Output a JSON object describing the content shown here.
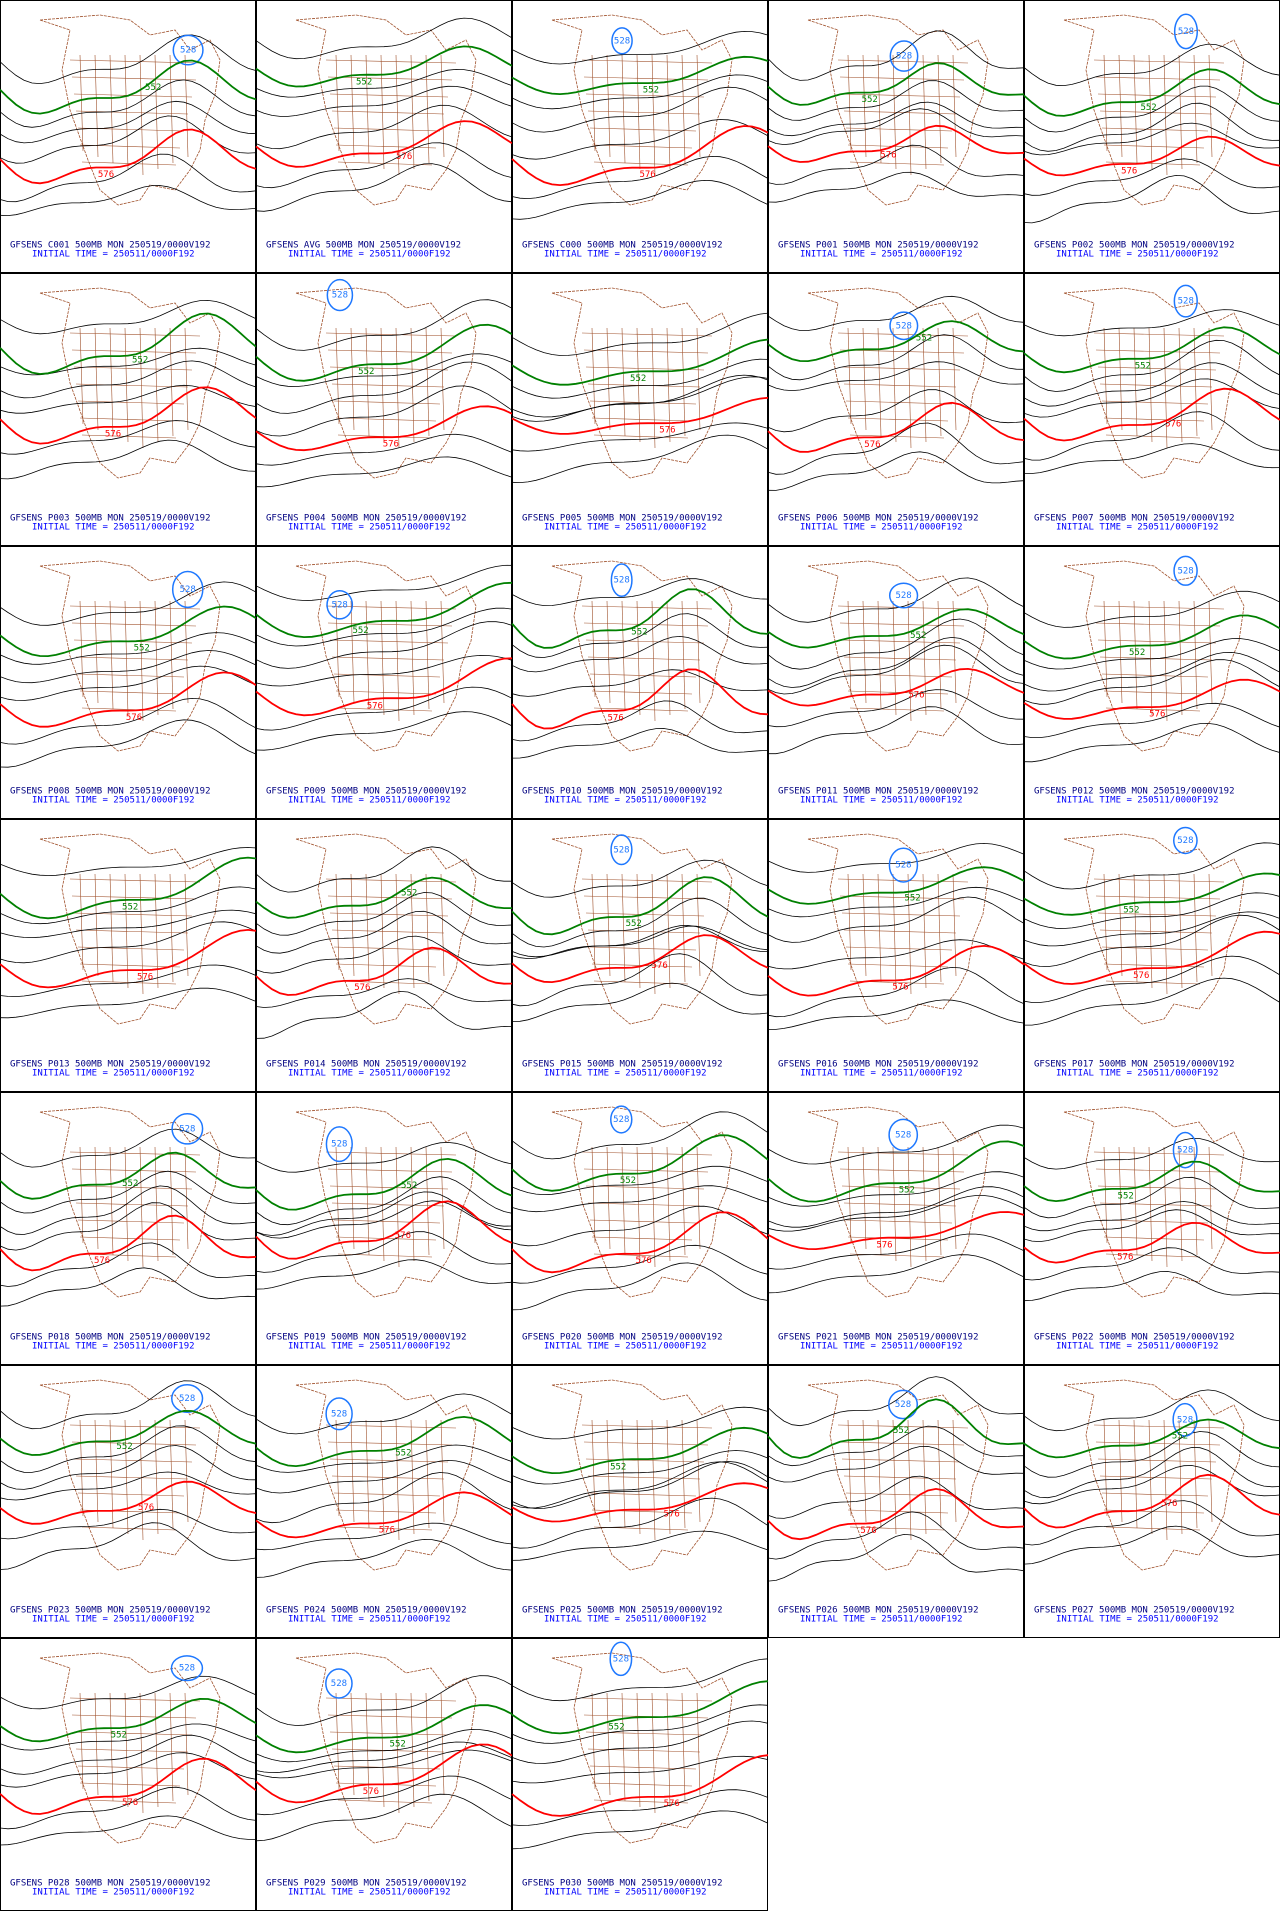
{
  "panels": [
    {
      "title": "GFSENS C001 500MB MON 250519/0000V192",
      "init": "INITIAL TIME = 250511/0000F192",
      "contours": [
        {
          "value": 528,
          "color": "#1e78ff"
        },
        {
          "value": 552,
          "color": "#008000"
        },
        {
          "value": 576,
          "color": "#ff0000"
        }
      ]
    },
    {
      "title": "GFSENS AVG 500MB MON 250519/0000V192",
      "init": "INITIAL TIME = 250511/0000F192",
      "contours": [
        {
          "value": 552,
          "color": "#008000"
        },
        {
          "value": 576,
          "color": "#ff0000"
        }
      ]
    },
    {
      "title": "GFSENS C000 500MB MON 250519/0000V192",
      "init": "INITIAL TIME = 250511/0000F192",
      "contours": [
        {
          "value": 528,
          "color": "#1e78ff"
        },
        {
          "value": 552,
          "color": "#008000"
        },
        {
          "value": 576,
          "color": "#ff0000"
        }
      ]
    },
    {
      "title": "GFSENS P001 500MB MON 250519/0000V192",
      "init": "INITIAL TIME = 250511/0000F192",
      "contours": [
        {
          "value": 528,
          "color": "#1e78ff"
        },
        {
          "value": 552,
          "color": "#008000"
        },
        {
          "value": 576,
          "color": "#ff0000"
        }
      ]
    },
    {
      "title": "GFSENS P002 500MB MON 250519/0000V192",
      "init": "INITIAL TIME = 250511/0000F192",
      "contours": [
        {
          "value": 528,
          "color": "#1e78ff"
        },
        {
          "value": 552,
          "color": "#008000"
        },
        {
          "value": 576,
          "color": "#ff0000"
        }
      ]
    },
    {
      "title": "GFSENS P003 500MB MON 250519/0000V192",
      "init": "INITIAL TIME = 250511/0000F192",
      "contours": [
        {
          "value": 552,
          "color": "#008000"
        },
        {
          "value": 576,
          "color": "#ff0000"
        }
      ]
    },
    {
      "title": "GFSENS P004 500MB MON 250519/0000V192",
      "init": "INITIAL TIME = 250511/0000F192",
      "contours": [
        {
          "value": 528,
          "color": "#1e78ff"
        },
        {
          "value": 552,
          "color": "#008000"
        },
        {
          "value": 576,
          "color": "#ff0000"
        }
      ]
    },
    {
      "title": "GFSENS P005 500MB MON 250519/0000V192",
      "init": "INITIAL TIME = 250511/0000F192",
      "contours": [
        {
          "value": 552,
          "color": "#008000"
        },
        {
          "value": 576,
          "color": "#ff0000"
        }
      ]
    },
    {
      "title": "GFSENS P006 500MB MON 250519/0000V192",
      "init": "INITIAL TIME = 250511/0000F192",
      "contours": [
        {
          "value": 528,
          "color": "#1e78ff"
        },
        {
          "value": 552,
          "color": "#008000"
        },
        {
          "value": 576,
          "color": "#ff0000"
        }
      ]
    },
    {
      "title": "GFSENS P007 500MB MON 250519/0000V192",
      "init": "INITIAL TIME = 250511/0000F192",
      "contours": [
        {
          "value": 528,
          "color": "#1e78ff"
        },
        {
          "value": 552,
          "color": "#008000"
        },
        {
          "value": 576,
          "color": "#ff0000"
        }
      ]
    },
    {
      "title": "GFSENS P008 500MB MON 250519/0000V192",
      "init": "INITIAL TIME = 250511/0000F192",
      "contours": [
        {
          "value": 528,
          "color": "#1e78ff"
        },
        {
          "value": 552,
          "color": "#008000"
        },
        {
          "value": 576,
          "color": "#ff0000"
        }
      ]
    },
    {
      "title": "GFSENS P009 500MB MON 250519/0000V192",
      "init": "INITIAL TIME = 250511/0000F192",
      "contours": [
        {
          "value": 528,
          "color": "#1e78ff"
        },
        {
          "value": 552,
          "color": "#008000"
        },
        {
          "value": 576,
          "color": "#ff0000"
        }
      ]
    },
    {
      "title": "GFSENS P010 500MB MON 250519/0000V192",
      "init": "INITIAL TIME = 250511/0000F192",
      "contours": [
        {
          "value": 528,
          "color": "#1e78ff"
        },
        {
          "value": 552,
          "color": "#008000"
        },
        {
          "value": 576,
          "color": "#ff0000"
        }
      ]
    },
    {
      "title": "GFSENS P011 500MB MON 250519/0000V192",
      "init": "INITIAL TIME = 250511/0000F192",
      "contours": [
        {
          "value": 528,
          "color": "#1e78ff"
        },
        {
          "value": 552,
          "color": "#008000"
        },
        {
          "value": 576,
          "color": "#ff0000"
        }
      ]
    },
    {
      "title": "GFSENS P012 500MB MON 250519/0000V192",
      "init": "INITIAL TIME = 250511/0000F192",
      "contours": [
        {
          "value": 528,
          "color": "#1e78ff"
        },
        {
          "value": 552,
          "color": "#008000"
        },
        {
          "value": 576,
          "color": "#ff0000"
        }
      ]
    },
    {
      "title": "GFSENS P013 500MB MON 250519/0000V192",
      "init": "INITIAL TIME = 250511/0000F192",
      "contours": [
        {
          "value": 552,
          "color": "#008000"
        },
        {
          "value": 576,
          "color": "#ff0000"
        }
      ]
    },
    {
      "title": "GFSENS P014 500MB MON 250519/0000V192",
      "init": "INITIAL TIME = 250511/0000F192",
      "contours": [
        {
          "value": 552,
          "color": "#008000"
        },
        {
          "value": 576,
          "color": "#ff0000"
        }
      ]
    },
    {
      "title": "GFSENS P015 500MB MON 250519/0000V192",
      "init": "INITIAL TIME = 250511/0000F192",
      "contours": [
        {
          "value": 528,
          "color": "#1e78ff"
        },
        {
          "value": 552,
          "color": "#008000"
        },
        {
          "value": 576,
          "color": "#ff0000"
        }
      ]
    },
    {
      "title": "GFSENS P016 500MB MON 250519/0000V192",
      "init": "INITIAL TIME = 250511/0000F192",
      "contours": [
        {
          "value": 528,
          "color": "#1e78ff"
        },
        {
          "value": 552,
          "color": "#008000"
        },
        {
          "value": 576,
          "color": "#ff0000"
        }
      ]
    },
    {
      "title": "GFSENS P017 500MB MON 250519/0000V192",
      "init": "INITIAL TIME = 250511/0000F192",
      "contours": [
        {
          "value": 528,
          "color": "#1e78ff"
        },
        {
          "value": 552,
          "color": "#008000"
        },
        {
          "value": 576,
          "color": "#ff0000"
        }
      ]
    },
    {
      "title": "GFSENS P018 500MB MON 250519/0000V192",
      "init": "INITIAL TIME = 250511/0000F192",
      "contours": [
        {
          "value": 528,
          "color": "#1e78ff"
        },
        {
          "value": 552,
          "color": "#008000"
        },
        {
          "value": 576,
          "color": "#ff0000"
        }
      ]
    },
    {
      "title": "GFSENS P019 500MB MON 250519/0000V192",
      "init": "INITIAL TIME = 250511/0000F192",
      "contours": [
        {
          "value": 528,
          "color": "#1e78ff"
        },
        {
          "value": 552,
          "color": "#008000"
        },
        {
          "value": 576,
          "color": "#ff0000"
        }
      ]
    },
    {
      "title": "GFSENS P020 500MB MON 250519/0000V192",
      "init": "INITIAL TIME = 250511/0000F192",
      "contours": [
        {
          "value": 528,
          "color": "#1e78ff"
        },
        {
          "value": 552,
          "color": "#008000"
        },
        {
          "value": 576,
          "color": "#ff0000"
        }
      ]
    },
    {
      "title": "GFSENS P021 500MB MON 250519/0000V192",
      "init": "INITIAL TIME = 250511/0000F192",
      "contours": [
        {
          "value": 528,
          "color": "#1e78ff"
        },
        {
          "value": 552,
          "color": "#008000"
        },
        {
          "value": 576,
          "color": "#ff0000"
        }
      ]
    },
    {
      "title": "GFSENS P022 500MB MON 250519/0000V192",
      "init": "INITIAL TIME = 250511/0000F192",
      "contours": [
        {
          "value": 528,
          "color": "#1e78ff"
        },
        {
          "value": 552,
          "color": "#008000"
        },
        {
          "value": 576,
          "color": "#ff0000"
        }
      ]
    },
    {
      "title": "GFSENS P023 500MB MON 250519/0000V192",
      "init": "INITIAL TIME = 250511/0000F192",
      "contours": [
        {
          "value": 528,
          "color": "#1e78ff"
        },
        {
          "value": 552,
          "color": "#008000"
        },
        {
          "value": 576,
          "color": "#ff0000"
        }
      ]
    },
    {
      "title": "GFSENS P024 500MB MON 250519/0000V192",
      "init": "INITIAL TIME = 250511/0000F192",
      "contours": [
        {
          "value": 528,
          "color": "#1e78ff"
        },
        {
          "value": 552,
          "color": "#008000"
        },
        {
          "value": 576,
          "color": "#ff0000"
        }
      ]
    },
    {
      "title": "GFSENS P025 500MB MON 250519/0000V192",
      "init": "INITIAL TIME = 250511/0000F192",
      "contours": [
        {
          "value": 552,
          "color": "#008000"
        },
        {
          "value": 576,
          "color": "#ff0000"
        }
      ]
    },
    {
      "title": "GFSENS P026 500MB MON 250519/0000V192",
      "init": "INITIAL TIME = 250511/0000F192",
      "contours": [
        {
          "value": 528,
          "color": "#1e78ff"
        },
        {
          "value": 552,
          "color": "#008000"
        },
        {
          "value": 576,
          "color": "#ff0000"
        }
      ]
    },
    {
      "title": "GFSENS P027 500MB MON 250519/0000V192",
      "init": "INITIAL TIME = 250511/0000F192",
      "contours": [
        {
          "value": 528,
          "color": "#1e78ff"
        },
        {
          "value": 552,
          "color": "#008000"
        },
        {
          "value": 576,
          "color": "#ff0000"
        }
      ]
    },
    {
      "title": "GFSENS P028 500MB MON 250519/0000V192",
      "init": "INITIAL TIME = 250511/0000F192",
      "contours": [
        {
          "value": 528,
          "color": "#1e78ff"
        },
        {
          "value": 552,
          "color": "#008000"
        },
        {
          "value": 576,
          "color": "#ff0000"
        }
      ]
    },
    {
      "title": "GFSENS P029 500MB MON 250519/0000V192",
      "init": "INITIAL TIME = 250511/0000F192",
      "contours": [
        {
          "value": 528,
          "color": "#1e78ff"
        },
        {
          "value": 552,
          "color": "#008000"
        },
        {
          "value": 576,
          "color": "#ff0000"
        }
      ]
    },
    {
      "title": "GFSENS P030 500MB MON 250519/0000V192",
      "init": "INITIAL TIME = 250511/0000F192",
      "contours": [
        {
          "value": 528,
          "color": "#1e78ff"
        },
        {
          "value": 552,
          "color": "#008000"
        },
        {
          "value": 576,
          "color": "#ff0000"
        }
      ]
    }
  ]
}
